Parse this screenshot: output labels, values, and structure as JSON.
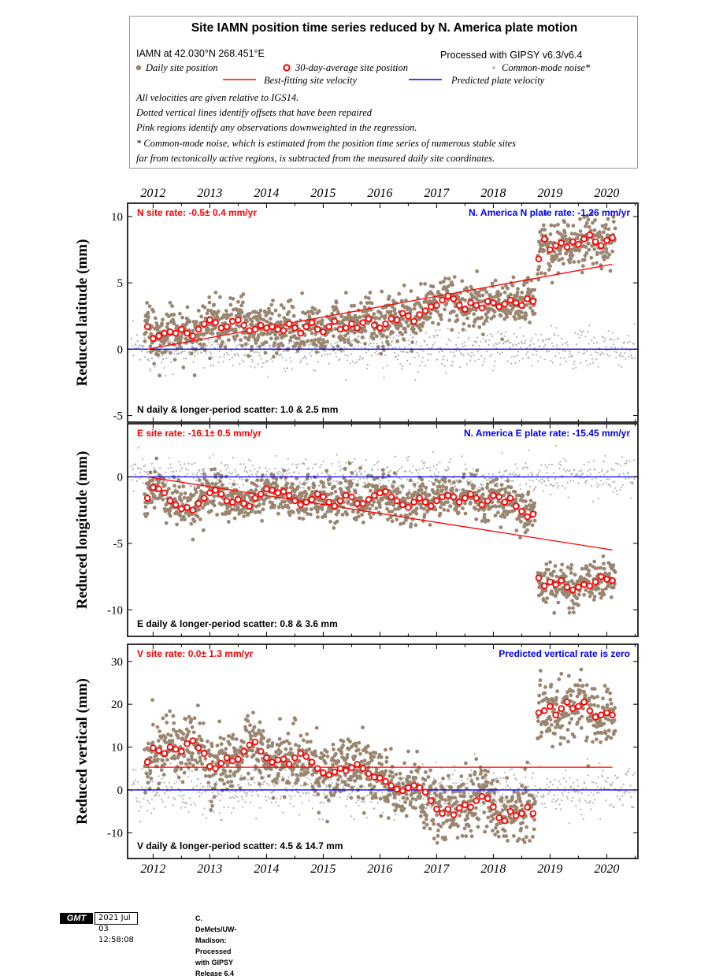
{
  "legend": {
    "title": "Site IAMN position time series reduced by N. America plate motion",
    "site_coords": "IAMN at 42.030°N 268.451°E",
    "processed": "Processed with GIPSY v6.3/v6.4",
    "daily": "Daily site position",
    "avg30": "30-day-average site position",
    "common_mode": "Common-mode noise*",
    "best_fit": "Best-fitting site velocity",
    "predicted": "Predicted plate velocity",
    "notes": [
      "All velocities are given relative to IGS14.",
      "Dotted vertical lines identify offsets that have been repaired",
      "Pink regions identify any observations downweighted in the regression.",
      "* Common-mode noise, which is estimated from the position time series of numerous stable sites",
      "far from tectonically active regions, is subtracted from the measured daily site coordinates."
    ]
  },
  "colors": {
    "daily": "#9a8670",
    "common_mode": "#b4b4b4",
    "fit": "#ff0000",
    "plate": "#0000ff",
    "rate_text": "#ff0000",
    "plate_text": "#0000ff"
  },
  "chart_data": [
    {
      "type": "scatter",
      "id": "north",
      "ylabel": "Reduced latitude (mm)",
      "ylim": [
        -5.5,
        11
      ],
      "yticks": [
        -5,
        0,
        5,
        10
      ],
      "xlim": [
        2011.55,
        2020.55
      ],
      "xticks": [
        2012,
        2013,
        2014,
        2015,
        2016,
        2017,
        2018,
        2019,
        2020
      ],
      "rate_label": "N site rate:  -0.5± 0.4 mm/yr",
      "plate_label": "N. America N plate rate: -1.26 mm/yr",
      "scatter_label": "N daily & longer-period scatter:   1.0 &   2.5 mm",
      "fit_line": {
        "x": [
          2011.9,
          2020.1
        ],
        "y": [
          0.0,
          6.4
        ]
      },
      "plate_line": {
        "y": 0
      },
      "daily_spread": 0.9,
      "common_spread": 0.75,
      "averages": [
        {
          "x": 2011.9,
          "y": 1.7
        },
        {
          "x": 2012.0,
          "y": 0.8
        },
        {
          "x": 2012.1,
          "y": 1.0
        },
        {
          "x": 2012.2,
          "y": 1.2
        },
        {
          "x": 2012.3,
          "y": 1.3
        },
        {
          "x": 2012.4,
          "y": 1.2
        },
        {
          "x": 2012.5,
          "y": 1.5
        },
        {
          "x": 2012.6,
          "y": 1.2
        },
        {
          "x": 2012.7,
          "y": 1.0
        },
        {
          "x": 2012.8,
          "y": 1.5
        },
        {
          "x": 2012.9,
          "y": 1.9
        },
        {
          "x": 2013.0,
          "y": 2.2
        },
        {
          "x": 2013.1,
          "y": 2.0
        },
        {
          "x": 2013.2,
          "y": 1.6
        },
        {
          "x": 2013.3,
          "y": 1.7
        },
        {
          "x": 2013.4,
          "y": 2.1
        },
        {
          "x": 2013.5,
          "y": 2.2
        },
        {
          "x": 2013.6,
          "y": 1.8
        },
        {
          "x": 2013.7,
          "y": 1.4
        },
        {
          "x": 2013.8,
          "y": 1.5
        },
        {
          "x": 2013.9,
          "y": 1.8
        },
        {
          "x": 2014.0,
          "y": 1.6
        },
        {
          "x": 2014.1,
          "y": 1.7
        },
        {
          "x": 2014.2,
          "y": 1.5
        },
        {
          "x": 2014.3,
          "y": 1.4
        },
        {
          "x": 2014.4,
          "y": 1.9
        },
        {
          "x": 2014.5,
          "y": 1.6
        },
        {
          "x": 2014.6,
          "y": 1.2
        },
        {
          "x": 2014.7,
          "y": 1.7
        },
        {
          "x": 2014.8,
          "y": 2.0
        },
        {
          "x": 2014.9,
          "y": 1.5
        },
        {
          "x": 2015.0,
          "y": 1.3
        },
        {
          "x": 2015.1,
          "y": 1.7
        },
        {
          "x": 2015.2,
          "y": 2.1
        },
        {
          "x": 2015.3,
          "y": 1.5
        },
        {
          "x": 2015.4,
          "y": 1.6
        },
        {
          "x": 2015.5,
          "y": 1.9
        },
        {
          "x": 2015.6,
          "y": 1.6
        },
        {
          "x": 2015.7,
          "y": 2.0
        },
        {
          "x": 2015.8,
          "y": 2.3
        },
        {
          "x": 2015.9,
          "y": 1.8
        },
        {
          "x": 2016.0,
          "y": 1.6
        },
        {
          "x": 2016.1,
          "y": 1.9
        },
        {
          "x": 2016.2,
          "y": 2.3
        },
        {
          "x": 2016.3,
          "y": 2.2
        },
        {
          "x": 2016.4,
          "y": 2.7
        },
        {
          "x": 2016.5,
          "y": 2.5
        },
        {
          "x": 2016.6,
          "y": 2.1
        },
        {
          "x": 2016.7,
          "y": 2.6
        },
        {
          "x": 2016.8,
          "y": 2.9
        },
        {
          "x": 2016.9,
          "y": 3.2
        },
        {
          "x": 2017.0,
          "y": 3.3
        },
        {
          "x": 2017.1,
          "y": 3.7
        },
        {
          "x": 2017.2,
          "y": 4.0
        },
        {
          "x": 2017.3,
          "y": 3.8
        },
        {
          "x": 2017.4,
          "y": 3.3
        },
        {
          "x": 2017.5,
          "y": 3.0
        },
        {
          "x": 2017.6,
          "y": 3.5
        },
        {
          "x": 2017.7,
          "y": 3.3
        },
        {
          "x": 2017.8,
          "y": 3.1
        },
        {
          "x": 2017.9,
          "y": 3.6
        },
        {
          "x": 2018.0,
          "y": 3.5
        },
        {
          "x": 2018.1,
          "y": 3.2
        },
        {
          "x": 2018.2,
          "y": 3.4
        },
        {
          "x": 2018.3,
          "y": 3.7
        },
        {
          "x": 2018.4,
          "y": 3.5
        },
        {
          "x": 2018.5,
          "y": 3.3
        },
        {
          "x": 2018.6,
          "y": 3.8
        },
        {
          "x": 2018.7,
          "y": 3.6
        },
        {
          "x": 2018.8,
          "y": 6.8
        },
        {
          "x": 2018.9,
          "y": 8.3
        },
        {
          "x": 2019.0,
          "y": 7.5
        },
        {
          "x": 2019.1,
          "y": 7.8
        },
        {
          "x": 2019.2,
          "y": 8.0
        },
        {
          "x": 2019.3,
          "y": 7.7
        },
        {
          "x": 2019.4,
          "y": 8.1
        },
        {
          "x": 2019.5,
          "y": 7.9
        },
        {
          "x": 2019.6,
          "y": 8.3
        },
        {
          "x": 2019.7,
          "y": 8.6
        },
        {
          "x": 2019.8,
          "y": 8.1
        },
        {
          "x": 2019.9,
          "y": 7.8
        },
        {
          "x": 2020.0,
          "y": 8.2
        },
        {
          "x": 2020.1,
          "y": 8.4
        }
      ]
    },
    {
      "type": "scatter",
      "id": "east",
      "ylabel": "Reduced longitude (mm)",
      "ylim": [
        -12,
        4
      ],
      "yticks": [
        -10,
        -5,
        0
      ],
      "xlim": [
        2011.55,
        2020.55
      ],
      "xticks": [
        2012,
        2013,
        2014,
        2015,
        2016,
        2017,
        2018,
        2019,
        2020
      ],
      "rate_label": "E site rate: -16.1± 0.5 mm/yr",
      "plate_label": "N. America E plate rate: -15.45 mm/yr",
      "scatter_label": "E daily & longer-period scatter:   0.8 &   3.6 mm",
      "fit_line": {
        "x": [
          2011.9,
          2020.1
        ],
        "y": [
          0.0,
          -5.5
        ]
      },
      "plate_line": {
        "y": 0
      },
      "daily_spread": 0.75,
      "common_spread": 0.7,
      "averages": [
        {
          "x": 2011.9,
          "y": -1.6
        },
        {
          "x": 2012.0,
          "y": -0.8
        },
        {
          "x": 2012.1,
          "y": -0.9
        },
        {
          "x": 2012.2,
          "y": -1.2
        },
        {
          "x": 2012.3,
          "y": -1.8
        },
        {
          "x": 2012.4,
          "y": -2.1
        },
        {
          "x": 2012.5,
          "y": -2.4
        },
        {
          "x": 2012.6,
          "y": -2.3
        },
        {
          "x": 2012.7,
          "y": -2.5
        },
        {
          "x": 2012.8,
          "y": -2.0
        },
        {
          "x": 2012.9,
          "y": -1.6
        },
        {
          "x": 2013.0,
          "y": -1.2
        },
        {
          "x": 2013.1,
          "y": -1.0
        },
        {
          "x": 2013.2,
          "y": -1.3
        },
        {
          "x": 2013.3,
          "y": -1.8
        },
        {
          "x": 2013.4,
          "y": -1.9
        },
        {
          "x": 2013.5,
          "y": -1.7
        },
        {
          "x": 2013.6,
          "y": -2.0
        },
        {
          "x": 2013.7,
          "y": -2.2
        },
        {
          "x": 2013.8,
          "y": -1.6
        },
        {
          "x": 2013.9,
          "y": -1.3
        },
        {
          "x": 2014.0,
          "y": -0.9
        },
        {
          "x": 2014.1,
          "y": -1.0
        },
        {
          "x": 2014.2,
          "y": -1.2
        },
        {
          "x": 2014.3,
          "y": -1.1
        },
        {
          "x": 2014.4,
          "y": -1.4
        },
        {
          "x": 2014.5,
          "y": -1.8
        },
        {
          "x": 2014.6,
          "y": -2.1
        },
        {
          "x": 2014.7,
          "y": -1.9
        },
        {
          "x": 2014.8,
          "y": -1.7
        },
        {
          "x": 2014.9,
          "y": -1.3
        },
        {
          "x": 2015.0,
          "y": -1.5
        },
        {
          "x": 2015.1,
          "y": -1.9
        },
        {
          "x": 2015.2,
          "y": -2.2
        },
        {
          "x": 2015.3,
          "y": -1.8
        },
        {
          "x": 2015.4,
          "y": -1.4
        },
        {
          "x": 2015.5,
          "y": -1.5
        },
        {
          "x": 2015.6,
          "y": -2.0
        },
        {
          "x": 2015.7,
          "y": -2.0
        },
        {
          "x": 2015.8,
          "y": -1.7
        },
        {
          "x": 2015.9,
          "y": -1.4
        },
        {
          "x": 2016.0,
          "y": -1.2
        },
        {
          "x": 2016.1,
          "y": -1.1
        },
        {
          "x": 2016.2,
          "y": -1.5
        },
        {
          "x": 2016.3,
          "y": -1.8
        },
        {
          "x": 2016.4,
          "y": -2.1
        },
        {
          "x": 2016.5,
          "y": -2.3
        },
        {
          "x": 2016.6,
          "y": -1.9
        },
        {
          "x": 2016.7,
          "y": -1.6
        },
        {
          "x": 2016.8,
          "y": -1.9
        },
        {
          "x": 2016.9,
          "y": -2.2
        },
        {
          "x": 2017.0,
          "y": -1.8
        },
        {
          "x": 2017.1,
          "y": -1.5
        },
        {
          "x": 2017.2,
          "y": -1.4
        },
        {
          "x": 2017.3,
          "y": -1.5
        },
        {
          "x": 2017.4,
          "y": -1.9
        },
        {
          "x": 2017.5,
          "y": -1.6
        },
        {
          "x": 2017.6,
          "y": -1.3
        },
        {
          "x": 2017.7,
          "y": -1.6
        },
        {
          "x": 2017.8,
          "y": -2.1
        },
        {
          "x": 2017.9,
          "y": -1.8
        },
        {
          "x": 2018.0,
          "y": -1.4
        },
        {
          "x": 2018.1,
          "y": -1.5
        },
        {
          "x": 2018.2,
          "y": -1.9
        },
        {
          "x": 2018.3,
          "y": -1.6
        },
        {
          "x": 2018.4,
          "y": -2.2
        },
        {
          "x": 2018.5,
          "y": -2.6
        },
        {
          "x": 2018.6,
          "y": -3.0
        },
        {
          "x": 2018.7,
          "y": -2.8
        },
        {
          "x": 2018.8,
          "y": -7.6
        },
        {
          "x": 2018.9,
          "y": -8.2
        },
        {
          "x": 2019.0,
          "y": -7.9
        },
        {
          "x": 2019.1,
          "y": -8.1
        },
        {
          "x": 2019.2,
          "y": -7.8
        },
        {
          "x": 2019.3,
          "y": -8.3
        },
        {
          "x": 2019.4,
          "y": -8.5
        },
        {
          "x": 2019.5,
          "y": -8.3
        },
        {
          "x": 2019.6,
          "y": -8.1
        },
        {
          "x": 2019.7,
          "y": -8.2
        },
        {
          "x": 2019.8,
          "y": -7.9
        },
        {
          "x": 2019.9,
          "y": -7.5
        },
        {
          "x": 2020.0,
          "y": -7.7
        },
        {
          "x": 2020.1,
          "y": -7.8
        }
      ]
    },
    {
      "type": "scatter",
      "id": "vertical",
      "ylabel": "Reduced vertical (mm)",
      "ylim": [
        -16,
        34
      ],
      "yticks": [
        -10,
        0,
        10,
        20,
        30
      ],
      "xlim": [
        2011.55,
        2020.55
      ],
      "xticks": [
        2012,
        2013,
        2014,
        2015,
        2016,
        2017,
        2018,
        2019,
        2020
      ],
      "rate_label": "V site rate:   0.0± 1.3 mm/yr",
      "plate_label": "Predicted vertical rate is zero",
      "scatter_label": "V daily & longer-period scatter:   4.5 &  14.7 mm",
      "fit_line": {
        "x": [
          2011.9,
          2020.1
        ],
        "y": [
          5.3,
          5.3
        ]
      },
      "plate_line": {
        "y": 0
      },
      "daily_spread": 3.6,
      "common_spread": 2.8,
      "averages": [
        {
          "x": 2011.9,
          "y": 6.5
        },
        {
          "x": 2012.0,
          "y": 9.8
        },
        {
          "x": 2012.1,
          "y": 9.2
        },
        {
          "x": 2012.2,
          "y": 8.5
        },
        {
          "x": 2012.3,
          "y": 10.0
        },
        {
          "x": 2012.4,
          "y": 9.5
        },
        {
          "x": 2012.5,
          "y": 9.0
        },
        {
          "x": 2012.6,
          "y": 10.8
        },
        {
          "x": 2012.7,
          "y": 11.5
        },
        {
          "x": 2012.8,
          "y": 9.8
        },
        {
          "x": 2012.9,
          "y": 8.5
        },
        {
          "x": 2013.0,
          "y": 5.5
        },
        {
          "x": 2013.1,
          "y": 5.0
        },
        {
          "x": 2013.2,
          "y": 6.2
        },
        {
          "x": 2013.3,
          "y": 7.5
        },
        {
          "x": 2013.4,
          "y": 6.8
        },
        {
          "x": 2013.5,
          "y": 7.2
        },
        {
          "x": 2013.6,
          "y": 9.0
        },
        {
          "x": 2013.7,
          "y": 10.5
        },
        {
          "x": 2013.8,
          "y": 11.2
        },
        {
          "x": 2013.9,
          "y": 9.0
        },
        {
          "x": 2014.0,
          "y": 7.5
        },
        {
          "x": 2014.1,
          "y": 6.5
        },
        {
          "x": 2014.2,
          "y": 7.0
        },
        {
          "x": 2014.3,
          "y": 7.2
        },
        {
          "x": 2014.4,
          "y": 6.0
        },
        {
          "x": 2014.5,
          "y": 7.5
        },
        {
          "x": 2014.6,
          "y": 8.5
        },
        {
          "x": 2014.7,
          "y": 7.8
        },
        {
          "x": 2014.8,
          "y": 6.5
        },
        {
          "x": 2014.9,
          "y": 5.0
        },
        {
          "x": 2015.0,
          "y": 4.0
        },
        {
          "x": 2015.1,
          "y": 3.5
        },
        {
          "x": 2015.2,
          "y": 4.2
        },
        {
          "x": 2015.3,
          "y": 5.0
        },
        {
          "x": 2015.4,
          "y": 4.5
        },
        {
          "x": 2015.5,
          "y": 5.2
        },
        {
          "x": 2015.6,
          "y": 6.0
        },
        {
          "x": 2015.7,
          "y": 5.0
        },
        {
          "x": 2015.8,
          "y": 3.8
        },
        {
          "x": 2015.9,
          "y": 3.0
        },
        {
          "x": 2016.0,
          "y": 2.8
        },
        {
          "x": 2016.1,
          "y": 2.0
        },
        {
          "x": 2016.2,
          "y": 1.0
        },
        {
          "x": 2016.3,
          "y": 0.2
        },
        {
          "x": 2016.4,
          "y": -0.2
        },
        {
          "x": 2016.5,
          "y": 0.5
        },
        {
          "x": 2016.6,
          "y": 1.0
        },
        {
          "x": 2016.7,
          "y": 0.5
        },
        {
          "x": 2016.8,
          "y": -0.5
        },
        {
          "x": 2016.9,
          "y": -2.5
        },
        {
          "x": 2017.0,
          "y": -4.5
        },
        {
          "x": 2017.1,
          "y": -5.5
        },
        {
          "x": 2017.2,
          "y": -4.5
        },
        {
          "x": 2017.3,
          "y": -5.8
        },
        {
          "x": 2017.4,
          "y": -4.2
        },
        {
          "x": 2017.5,
          "y": -3.5
        },
        {
          "x": 2017.6,
          "y": -4.0
        },
        {
          "x": 2017.7,
          "y": -2.5
        },
        {
          "x": 2017.8,
          "y": -1.5
        },
        {
          "x": 2017.9,
          "y": -2.0
        },
        {
          "x": 2018.0,
          "y": -4.0
        },
        {
          "x": 2018.1,
          "y": -6.5
        },
        {
          "x": 2018.2,
          "y": -7.2
        },
        {
          "x": 2018.3,
          "y": -5.0
        },
        {
          "x": 2018.4,
          "y": -6.0
        },
        {
          "x": 2018.5,
          "y": -5.5
        },
        {
          "x": 2018.6,
          "y": -4.0
        },
        {
          "x": 2018.7,
          "y": -5.5
        },
        {
          "x": 2018.8,
          "y": 18.0
        },
        {
          "x": 2018.9,
          "y": 18.5
        },
        {
          "x": 2019.0,
          "y": 19.5
        },
        {
          "x": 2019.1,
          "y": 17.5
        },
        {
          "x": 2019.2,
          "y": 19.0
        },
        {
          "x": 2019.3,
          "y": 20.5
        },
        {
          "x": 2019.4,
          "y": 19.0
        },
        {
          "x": 2019.5,
          "y": 19.5
        },
        {
          "x": 2019.6,
          "y": 20.5
        },
        {
          "x": 2019.7,
          "y": 18.5
        },
        {
          "x": 2019.8,
          "y": 17.0
        },
        {
          "x": 2019.9,
          "y": 17.5
        },
        {
          "x": 2020.0,
          "y": 18.0
        },
        {
          "x": 2020.1,
          "y": 17.5
        }
      ]
    }
  ],
  "footer": {
    "logo": "GMT",
    "timestamp": "2021 Jul 03 12:58:08",
    "credit": "C. DeMets/UW-Madison: Processed with GIPSY Release 6.4"
  }
}
